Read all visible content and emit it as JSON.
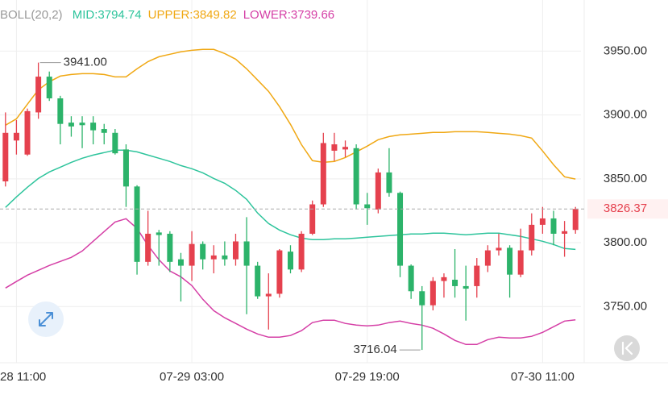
{
  "chart_data": {
    "type": "candlestick",
    "title": "BOLL(20,2)",
    "up_color": "#e5414e",
    "down_color": "#2cb36a",
    "candles": {
      "open": [
        3848,
        3880,
        3869,
        3902,
        3930,
        3913,
        3894,
        3894,
        3894,
        3889,
        3886,
        3873,
        3844,
        3785,
        3808,
        3807,
        3787,
        3782,
        3799,
        3787,
        3790,
        3787,
        3801,
        3782,
        3758,
        3760,
        3793,
        3779,
        3807,
        3830,
        3872,
        3873,
        3874,
        3830,
        3826,
        3855,
        3839,
        3782,
        3762,
        3751,
        3770,
        3771,
        3766,
        3766,
        3782,
        3794,
        3796,
        3775,
        3794,
        3814,
        3819,
        3807,
        3810
      ],
      "high": [
        3902,
        3896,
        3905,
        3941,
        3934,
        3915,
        3899,
        3899,
        3899,
        3893,
        3889,
        3877,
        3845,
        3825,
        3810,
        3809,
        3792,
        3809,
        3801,
        3798,
        3801,
        3807,
        3820,
        3785,
        3776,
        3795,
        3798,
        3809,
        3833,
        3886,
        3886,
        3880,
        3877,
        3839,
        3858,
        3874,
        3840,
        3783,
        3766,
        3773,
        3776,
        3795,
        3782,
        3788,
        3798,
        3807,
        3798,
        3811,
        3823,
        3828,
        3825,
        3817,
        3828
      ],
      "low": [
        3844,
        3869,
        3868,
        3897,
        3911,
        3877,
        3883,
        3874,
        3877,
        3877,
        3869,
        3828,
        3775,
        3782,
        3782,
        3777,
        3754,
        3770,
        3779,
        3776,
        3782,
        3782,
        3744,
        3756,
        3732,
        3757,
        3776,
        3777,
        3806,
        3828,
        3864,
        3867,
        3826,
        3814,
        3823,
        3836,
        3773,
        3756,
        3716.04,
        3747,
        3757,
        3757,
        3739,
        3757,
        3777,
        3790,
        3757,
        3773,
        3790,
        3807,
        3798,
        3789,
        3807
      ],
      "close": [
        3886,
        3886,
        3903,
        3930,
        3913,
        3893,
        3891,
        3892,
        3888,
        3886,
        3870,
        3844,
        3785,
        3807,
        3806,
        3785,
        3782,
        3799,
        3787,
        3790,
        3787,
        3801,
        3782,
        3758,
        3760,
        3794,
        3779,
        3807,
        3830,
        3878,
        3877,
        3875,
        3830,
        3827,
        3855,
        3839,
        3782,
        3762,
        3751,
        3770,
        3773,
        3766,
        3764,
        3782,
        3794,
        3796,
        3775,
        3794,
        3814,
        3819,
        3807,
        3809,
        3826.37
      ]
    },
    "series": [
      {
        "name": "MID:",
        "color": "#2ec49c",
        "values": [
          3827.6,
          3835.8,
          3843.4,
          3850.3,
          3855.4,
          3859.1,
          3862.9,
          3866.1,
          3868.6,
          3870.5,
          3872.4,
          3872.4,
          3871.1,
          3868.6,
          3866.1,
          3863.6,
          3860.4,
          3857.9,
          3854.7,
          3850.3,
          3846.5,
          3840.9,
          3833.9,
          3823.2,
          3815.0,
          3809.9,
          3806.2,
          3803.6,
          3802.4,
          3802.4,
          3803.0,
          3803.0,
          3803.6,
          3804.3,
          3804.9,
          3805.5,
          3806.2,
          3806.8,
          3806.8,
          3807.4,
          3807.4,
          3806.8,
          3806.2,
          3806.8,
          3807.4,
          3807.4,
          3806.2,
          3804.9,
          3803.0,
          3801.1,
          3798.6,
          3795.4,
          3794.74
        ]
      },
      {
        "name": "UPPER:",
        "color": "#f0a814",
        "values": [
          3892.0,
          3897.0,
          3908.4,
          3919.7,
          3926.0,
          3930.4,
          3931.7,
          3932.3,
          3932.3,
          3931.7,
          3929.8,
          3929.8,
          3936.1,
          3941.8,
          3945.6,
          3947.5,
          3949.4,
          3950.6,
          3951.3,
          3951.3,
          3948.1,
          3943.7,
          3936.1,
          3927.3,
          3918.5,
          3906.5,
          3892.6,
          3876.8,
          3864.2,
          3862.9,
          3863.6,
          3866.7,
          3871.1,
          3875.6,
          3880.6,
          3883.1,
          3884.4,
          3885.0,
          3885.6,
          3886.3,
          3886.3,
          3886.9,
          3886.9,
          3886.9,
          3886.3,
          3885.6,
          3885.0,
          3883.8,
          3881.9,
          3871.8,
          3861.0,
          3851.6,
          3849.82
        ]
      },
      {
        "name": "LOWER:",
        "color": "#d53fa6",
        "values": [
          3764.5,
          3769.6,
          3774.6,
          3778.4,
          3782.2,
          3785.3,
          3788.5,
          3793.5,
          3801.1,
          3808.7,
          3816.2,
          3818.8,
          3811.2,
          3797.9,
          3786.6,
          3777.8,
          3773.3,
          3766.4,
          3755.7,
          3746.8,
          3741.2,
          3736.8,
          3732.3,
          3728.5,
          3726.0,
          3726.0,
          3727.3,
          3731.1,
          3737.4,
          3739.3,
          3739.3,
          3736.8,
          3735.5,
          3734.9,
          3735.5,
          3737.4,
          3738.6,
          3736.8,
          3735.5,
          3733.0,
          3728.5,
          3723.5,
          3720.3,
          3720.3,
          3724.1,
          3726.0,
          3725.4,
          3725.4,
          3726.7,
          3729.8,
          3734.2,
          3738.6,
          3739.66
        ]
      }
    ],
    "ylim": [
      3706,
      3990
    ],
    "yticks": [
      {
        "value": 3750,
        "label": "3750.00"
      },
      {
        "value": 3800,
        "label": "3800.00"
      },
      {
        "value": 3850,
        "label": "3850.00"
      },
      {
        "value": 3900,
        "label": "3900.00"
      },
      {
        "value": 3950,
        "label": "3950.00"
      }
    ],
    "xlim": [
      -0.5,
      52.5
    ],
    "xticks": [
      {
        "value": 1,
        "label": "28 11:00"
      },
      {
        "value": 17,
        "label": "07-29 03:00"
      },
      {
        "value": 33,
        "label": "07-29 19:00"
      },
      {
        "value": 49,
        "label": "07-30 11:00"
      }
    ],
    "grid": true,
    "annotations": {
      "high_label": "3941.00",
      "low_label": "3716.04",
      "last_label": "3826.37"
    }
  }
}
